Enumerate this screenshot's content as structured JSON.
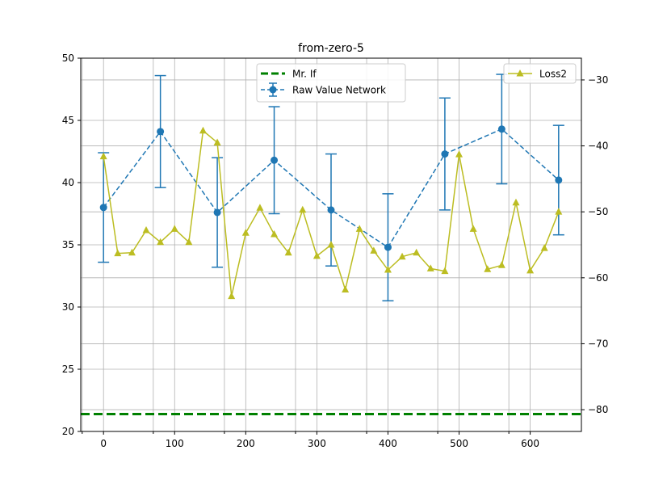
{
  "chart_data": {
    "type": "line",
    "title": "from-zero-5",
    "xlabel": "",
    "ylabel_left": "",
    "ylabel_right": "",
    "xlim": [
      -32,
      672
    ],
    "ylim_left": [
      20,
      50
    ],
    "ylim_right": [
      -83.3,
      -26.7
    ],
    "x_ticks": [
      0,
      100,
      200,
      300,
      400,
      500,
      600
    ],
    "x_tick_labels": [
      "0",
      "100",
      "200",
      "300",
      "400",
      "500",
      "600"
    ],
    "y_left_ticks": [
      20,
      25,
      30,
      35,
      40,
      45,
      50
    ],
    "y_left_tick_labels": [
      "20",
      "25",
      "30",
      "35",
      "40",
      "45",
      "50"
    ],
    "y_right_ticks": [
      -30,
      -40,
      -50,
      -60,
      -70,
      -80
    ],
    "y_right_tick_labels": [
      "−30",
      "−40",
      "−50",
      "−60",
      "−70",
      "−80"
    ],
    "grid": true,
    "legend_left": {
      "placement": "top-center"
    },
    "legend_right": {
      "placement": "top-right"
    },
    "series": [
      {
        "name": "Mr. If",
        "axis": "left",
        "style": "dashed-hline",
        "color": "#008000",
        "value": 21.4
      },
      {
        "name": "Raw Value Network",
        "axis": "left",
        "style": "dashed-errorbar",
        "color": "#1f77b4",
        "x": [
          0,
          80,
          160,
          240,
          320,
          400,
          480,
          560,
          640
        ],
        "y": [
          38.0,
          44.1,
          37.6,
          41.8,
          37.8,
          34.8,
          42.3,
          44.3,
          40.2
        ],
        "err": [
          4.4,
          4.5,
          4.4,
          4.3,
          4.5,
          4.3,
          4.5,
          4.4,
          4.4
        ]
      },
      {
        "name": "Loss2",
        "axis": "right",
        "style": "solid-triangle",
        "color": "#bcbd22",
        "x": [
          0,
          20,
          40,
          60,
          80,
          100,
          120,
          140,
          160,
          180,
          200,
          220,
          240,
          260,
          280,
          300,
          320,
          340,
          360,
          380,
          400,
          420,
          440,
          460,
          480,
          500,
          520,
          540,
          560,
          580,
          600,
          620,
          640
        ],
        "y": [
          -41.6,
          -56.3,
          -56.2,
          -52.8,
          -54.6,
          -52.6,
          -54.6,
          -37.7,
          -39.5,
          -62.8,
          -53.2,
          -49.4,
          -53.4,
          -56.2,
          -49.7,
          -56.7,
          -55.0,
          -61.8,
          -52.6,
          -55.9,
          -58.8,
          -56.8,
          -56.2,
          -58.6,
          -59.0,
          -41.3,
          -52.6,
          -58.7,
          -58.1,
          -48.6,
          -58.9,
          -55.5,
          -50.0
        ]
      }
    ]
  }
}
